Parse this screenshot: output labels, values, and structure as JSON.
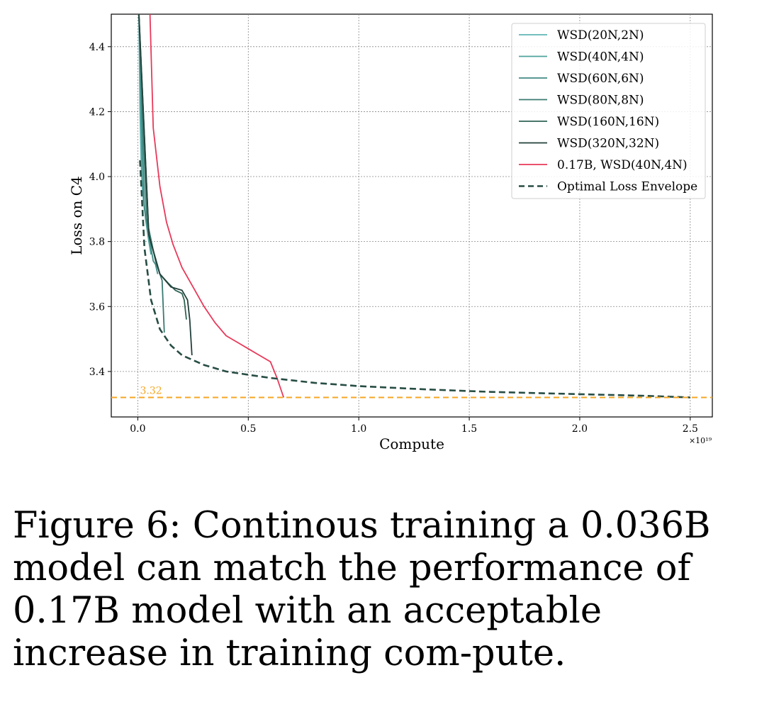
{
  "chart_data": {
    "type": "line",
    "xlabel": "Compute",
    "ylabel": "Loss on C4",
    "x_scale_label": "×10¹⁹",
    "xlim": [
      -0.12,
      2.6
    ],
    "ylim": [
      3.26,
      4.5
    ],
    "xticks": [
      "0.0",
      "0.5",
      "1.0",
      "1.5",
      "2.0",
      "2.5"
    ],
    "yticks": [
      "3.4",
      "3.6",
      "3.8",
      "4.0",
      "4.2",
      "4.4"
    ],
    "grid": true,
    "legend_position": "top-right",
    "hline": {
      "y": 3.32,
      "label": "3.32",
      "color": "#f5a623",
      "style": "dashed"
    },
    "series": [
      {
        "name": "WSD(20N,2N)",
        "color": "#5fb4b5",
        "style": "solid",
        "x": [
          0.005,
          0.01,
          0.015,
          0.02,
          0.025,
          0.03
        ],
        "y": [
          4.5,
          4.2,
          4.05,
          3.97,
          3.93,
          3.9
        ]
      },
      {
        "name": "WSD(40N,4N)",
        "color": "#4fa39c",
        "style": "solid",
        "x": [
          0.005,
          0.02,
          0.035,
          0.05,
          0.06
        ],
        "y": [
          4.5,
          4.0,
          3.87,
          3.8,
          3.76
        ]
      },
      {
        "name": "WSD(60N,6N)",
        "color": "#428a84",
        "style": "solid",
        "x": [
          0.005,
          0.03,
          0.06,
          0.07,
          0.08,
          0.09
        ],
        "y": [
          4.5,
          3.9,
          3.78,
          3.74,
          3.73,
          3.7
        ]
      },
      {
        "name": "WSD(80N,8N)",
        "color": "#3a7a6f",
        "style": "solid",
        "x": [
          0.005,
          0.04,
          0.08,
          0.1,
          0.11,
          0.12
        ],
        "y": [
          4.5,
          3.87,
          3.74,
          3.7,
          3.68,
          3.52
        ]
      },
      {
        "name": "WSD(160N,16N)",
        "color": "#2f6354",
        "style": "solid",
        "x": [
          0.005,
          0.05,
          0.1,
          0.14,
          0.17,
          0.2,
          0.21,
          0.22
        ],
        "y": [
          4.5,
          3.82,
          3.7,
          3.67,
          3.65,
          3.64,
          3.62,
          3.56
        ]
      },
      {
        "name": "WSD(320N,32N)",
        "color": "#22403a",
        "style": "solid",
        "x": [
          0.005,
          0.05,
          0.1,
          0.15,
          0.2,
          0.225,
          0.235,
          0.245
        ],
        "y": [
          4.5,
          3.82,
          3.7,
          3.66,
          3.65,
          3.62,
          3.56,
          3.45
        ]
      },
      {
        "name": "0.17B, WSD(40N,4N)",
        "color": "#e8395a",
        "style": "solid",
        "x": [
          0.055,
          0.07,
          0.1,
          0.13,
          0.16,
          0.2,
          0.25,
          0.3,
          0.35,
          0.4,
          0.45,
          0.5,
          0.55,
          0.6,
          0.63,
          0.66
        ],
        "y": [
          4.5,
          4.15,
          3.97,
          3.86,
          3.79,
          3.72,
          3.66,
          3.6,
          3.55,
          3.51,
          3.49,
          3.47,
          3.45,
          3.43,
          3.38,
          3.32
        ]
      },
      {
        "name": "Optimal Loss Envelope",
        "color": "#274d44",
        "style": "dashed",
        "x": [
          0.01,
          0.03,
          0.06,
          0.1,
          0.15,
          0.2,
          0.3,
          0.4,
          0.5,
          0.6,
          0.8,
          1.0,
          1.3,
          1.6,
          2.0,
          2.3,
          2.5
        ],
        "y": [
          4.05,
          3.78,
          3.62,
          3.53,
          3.48,
          3.45,
          3.42,
          3.4,
          3.39,
          3.38,
          3.365,
          3.355,
          3.345,
          3.337,
          3.33,
          3.325,
          3.32
        ]
      }
    ]
  },
  "caption": "Figure 6: Continous training a 0.036B model can match the performance of 0.17B model with an acceptable increase in training com-pute."
}
